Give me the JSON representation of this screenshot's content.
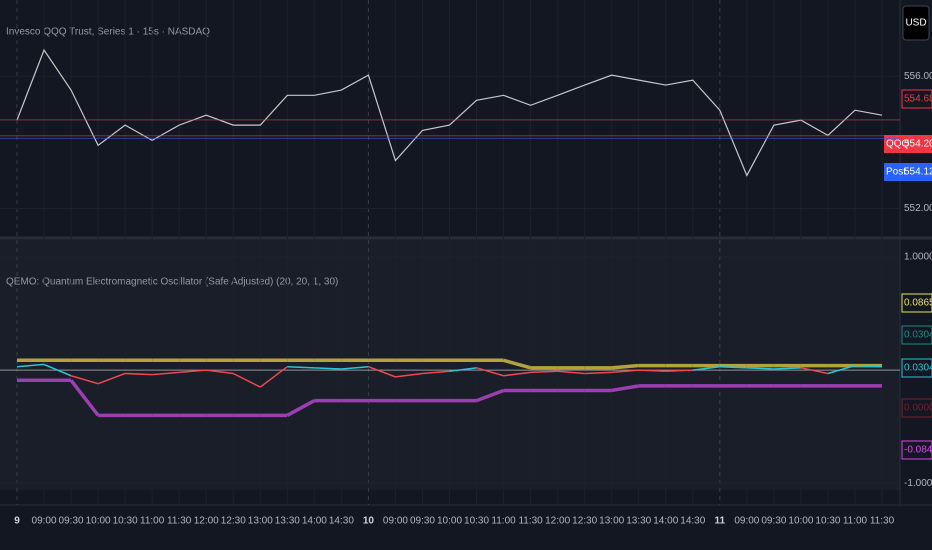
{
  "chart_data": [
    {
      "type": "line",
      "title": "Invesco QQQ Trust, Series 1 · 15s · NASDAQ",
      "categories": [
        "9",
        "09:00",
        "09:30",
        "10:00",
        "10:30",
        "11:00",
        "11:30",
        "12:00",
        "12:30",
        "13:00",
        "13:30",
        "14:00",
        "14:30",
        "10",
        "09:00",
        "09:30",
        "10:00",
        "10:30",
        "11:00",
        "11:30",
        "12:00",
        "12:30",
        "13:00",
        "13:30",
        "14:00",
        "14:30",
        "11",
        "09:00",
        "09:30",
        "10:00",
        "10:30",
        "11:00",
        "11:30"
      ],
      "series": [
        {
          "name": "QQQ",
          "color": "#c8c8c8",
          "values": [
            554.67,
            556.79,
            555.58,
            553.91,
            554.52,
            554.06,
            554.52,
            554.82,
            554.52,
            554.52,
            555.42,
            555.42,
            555.58,
            556.03,
            553.45,
            554.36,
            554.52,
            555.27,
            555.42,
            555.12,
            555.42,
            555.73,
            556.03,
            555.88,
            555.73,
            555.88,
            554.97,
            553.0,
            554.52,
            554.67,
            554.21,
            554.97,
            554.82
          ]
        }
      ],
      "ylim": [
        551.2,
        558.3
      ],
      "yticks": [
        {
          "value": 552,
          "label": "552.00"
        },
        {
          "value": 556,
          "label": "556.00"
        }
      ],
      "currency": "USD",
      "price_labels": [
        {
          "value": 554.68,
          "label": "554.68",
          "color": "#f23645"
        },
        {
          "name": "QQQ",
          "value": 554.2,
          "label": "554.20",
          "color": "#f23645"
        },
        {
          "name": "Post",
          "value": 554.12,
          "label": "554.12",
          "color": "#2962ff"
        }
      ]
    },
    {
      "type": "oscillator",
      "title": "QEMO: Quantum Electromagnetic Oscillator (Safe Adjusted) (20, 20, 1, 30)",
      "series": [
        {
          "color": "#b4a23c",
          "values": [
            0.0865,
            0.0865,
            0.0865,
            0.0865,
            0.0865,
            0.0865,
            0.0865,
            0.0865,
            0.0865,
            0.0865,
            0.0865,
            0.0865,
            0.0865,
            0.0865,
            0.0865,
            0.0865,
            0.0865,
            0.0865,
            0.0865,
            0.02,
            0.02,
            0.02,
            0.02,
            0.04,
            0.04,
            0.04,
            0.04,
            0.04,
            0.04,
            0.04,
            0.04,
            0.04,
            0.04
          ]
        },
        {
          "color": "#26c6da",
          "neg_color": "#f0474f",
          "values": [
            0.03,
            0.05,
            -0.05,
            -0.12,
            -0.03,
            -0.04,
            -0.02,
            0.0,
            -0.03,
            -0.15,
            0.03,
            0.02,
            0.01,
            0.03,
            -0.06,
            -0.03,
            -0.01,
            0.02,
            -0.05,
            -0.02,
            -0.01,
            -0.03,
            -0.02,
            0.0,
            -0.01,
            0.0,
            0.03,
            0.02,
            0.01,
            0.02,
            -0.03,
            0.04,
            0.03
          ]
        },
        {
          "color": "#9c3fb0",
          "values": [
            -0.09,
            -0.09,
            -0.09,
            -0.4,
            -0.4,
            -0.4,
            -0.4,
            -0.4,
            -0.4,
            -0.4,
            -0.4,
            -0.27,
            -0.27,
            -0.27,
            -0.27,
            -0.27,
            -0.27,
            -0.27,
            -0.18,
            -0.18,
            -0.18,
            -0.18,
            -0.18,
            -0.14,
            -0.14,
            -0.14,
            -0.14,
            -0.14,
            -0.14,
            -0.14,
            -0.14,
            -0.14,
            -0.14
          ]
        }
      ],
      "ylim": [
        -1.06,
        1.15
      ],
      "yticks": [
        {
          "value": 1,
          "label": "1.0000"
        },
        {
          "value": -1,
          "label": "-1.0000"
        }
      ],
      "value_labels": [
        {
          "value": 0.0865,
          "label": "0.0865",
          "color": "#e8e05a"
        },
        {
          "value": 0.0304,
          "label": "0.0304",
          "color": "#1f8a8a"
        },
        {
          "value": 0.0304,
          "label": "0.0304",
          "color": "#26c6da"
        },
        {
          "value": 0.0,
          "label": "0.0000",
          "color": "#7a1c2a"
        },
        {
          "value": -0.0845,
          "label": "-0.0845",
          "color": "#d946ef"
        }
      ]
    }
  ]
}
